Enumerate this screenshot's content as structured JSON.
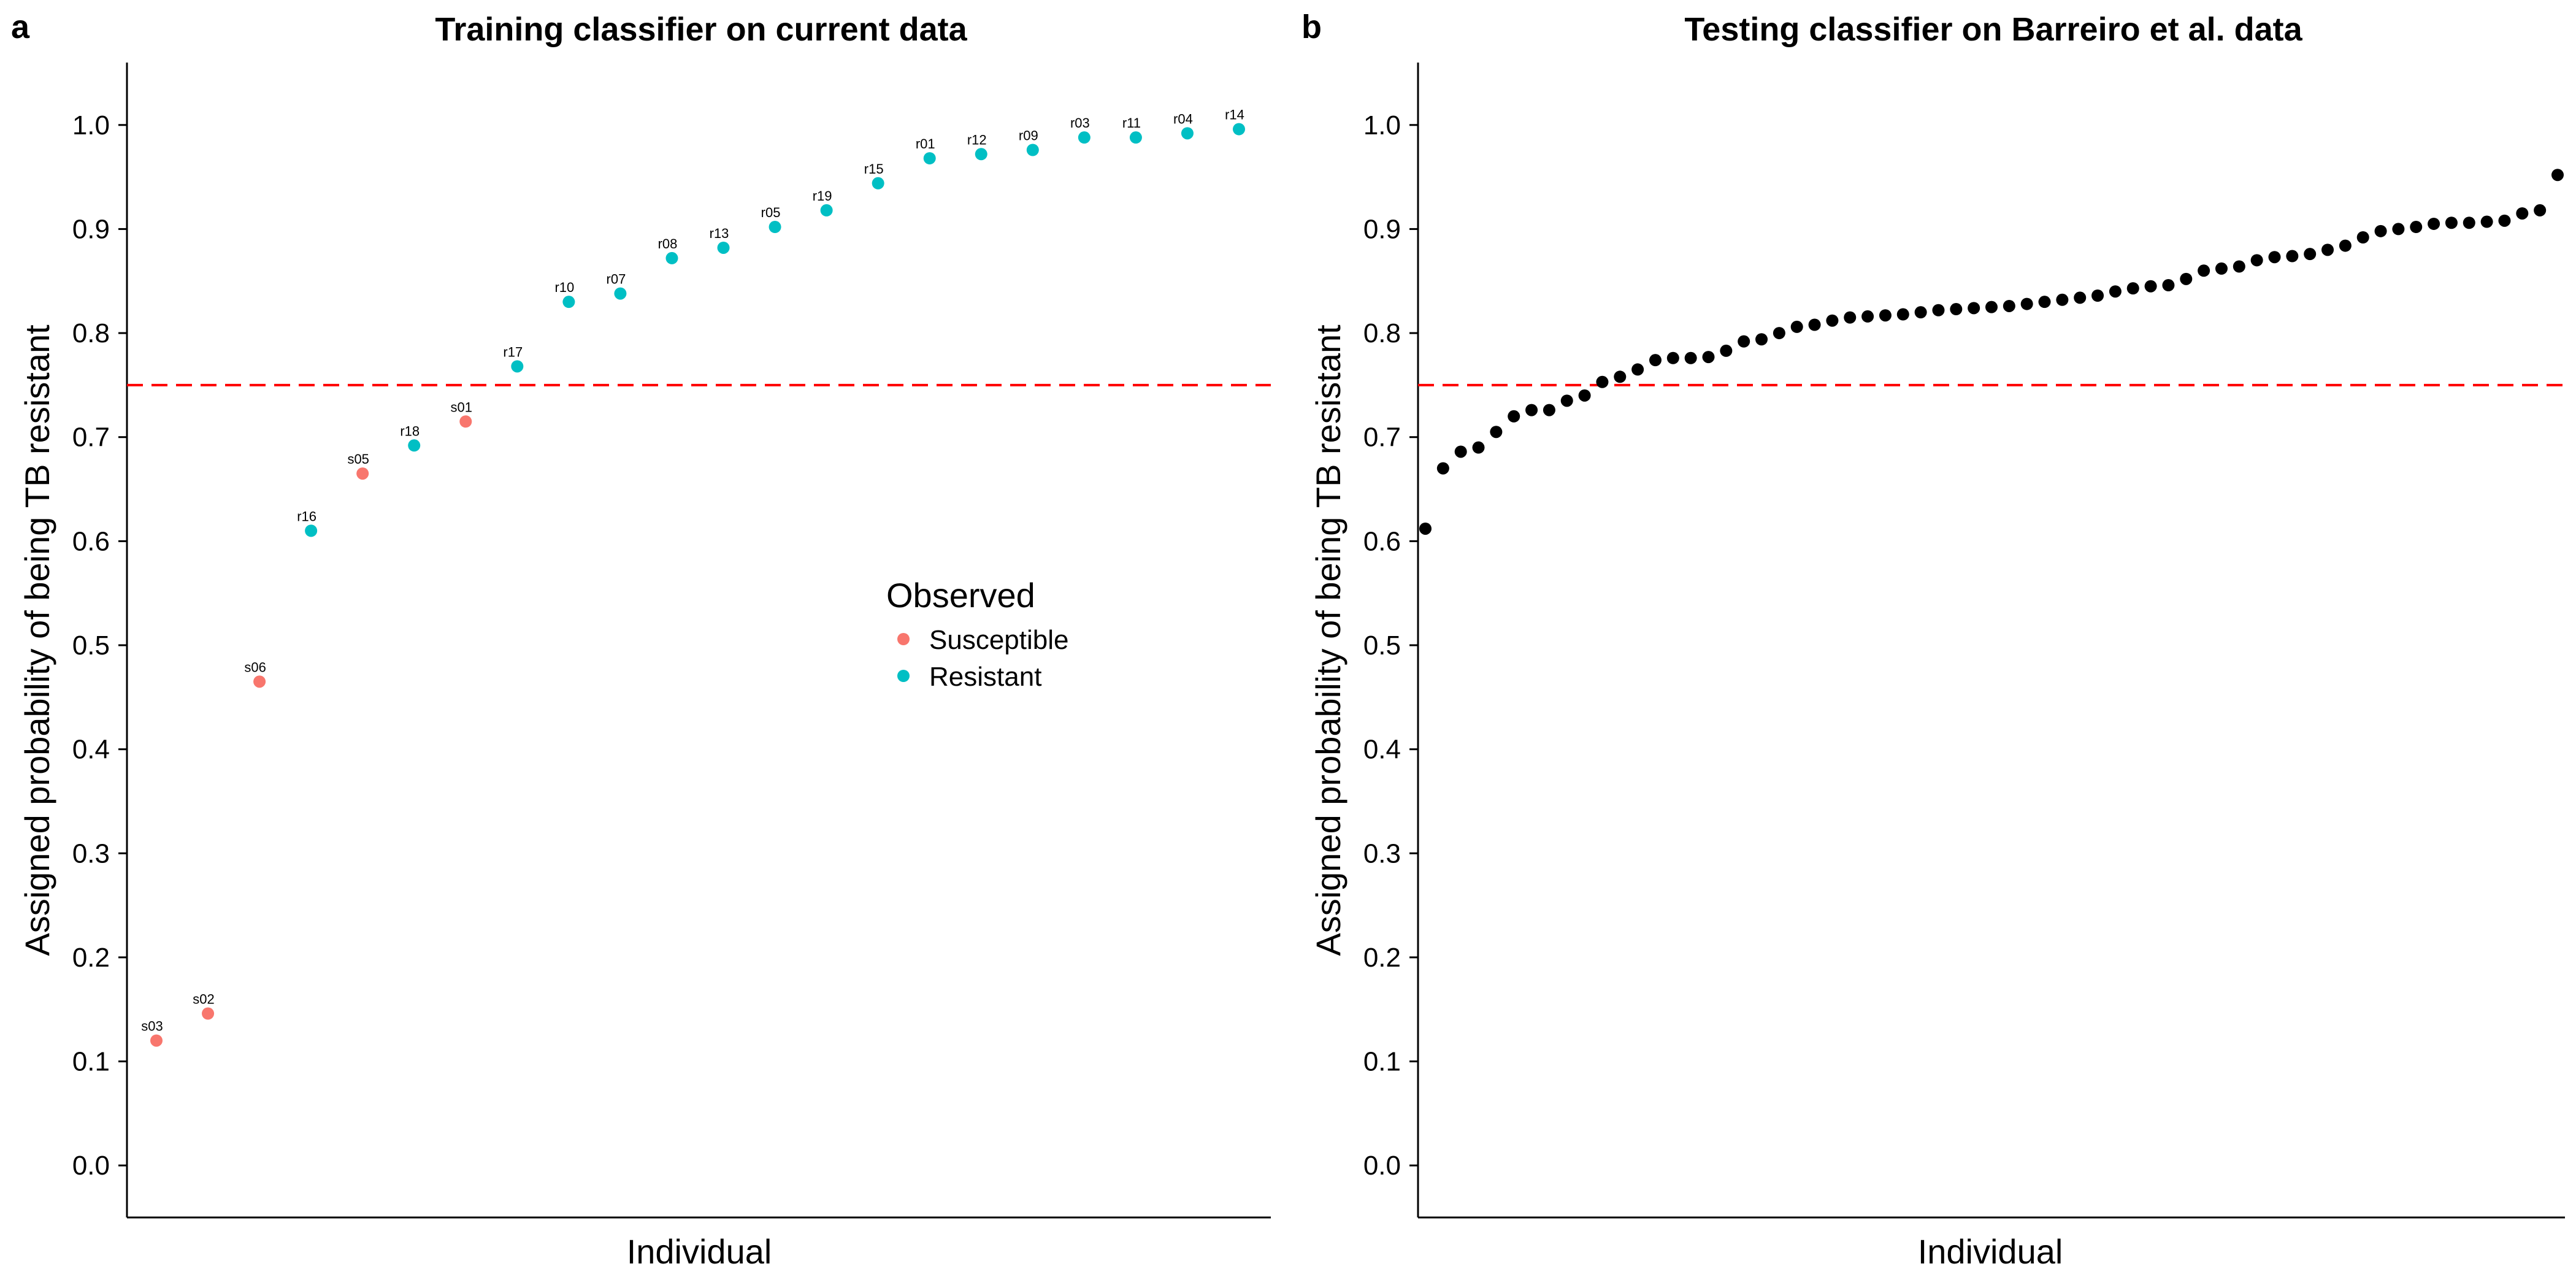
{
  "chart_data": [
    {
      "panel": "a",
      "type": "scatter",
      "title": "Training classifier on current data",
      "xlabel": "Individual",
      "ylabel": "Assigned probability of being TB resistant",
      "ylim": [
        -0.05,
        1.06
      ],
      "yticks": [
        0.0,
        0.1,
        0.2,
        0.3,
        0.4,
        0.5,
        0.6,
        0.7,
        0.8,
        0.9,
        1.0
      ],
      "ytick_labels": [
        "0.0",
        "0.1",
        "0.2",
        "0.3",
        "0.4",
        "0.5",
        "0.6",
        "0.7",
        "0.8",
        "0.9",
        "1.0"
      ],
      "threshold": 0.75,
      "threshold_color": "#ff0000",
      "grid": false,
      "legend": {
        "title": "Observed",
        "placement": "center-right",
        "entries": [
          {
            "label": "Susceptible",
            "color": "#f8766d"
          },
          {
            "label": "Resistant",
            "color": "#00bfc4"
          }
        ]
      },
      "points": [
        {
          "label": "s03",
          "y": 0.12,
          "group": "Susceptible"
        },
        {
          "label": "s02",
          "y": 0.146,
          "group": "Susceptible"
        },
        {
          "label": "s06",
          "y": 0.465,
          "group": "Susceptible"
        },
        {
          "label": "r16",
          "y": 0.61,
          "group": "Resistant"
        },
        {
          "label": "s05",
          "y": 0.665,
          "group": "Susceptible"
        },
        {
          "label": "r18",
          "y": 0.692,
          "group": "Resistant"
        },
        {
          "label": "s01",
          "y": 0.715,
          "group": "Susceptible"
        },
        {
          "label": "r17",
          "y": 0.768,
          "group": "Resistant"
        },
        {
          "label": "r10",
          "y": 0.83,
          "group": "Resistant"
        },
        {
          "label": "r07",
          "y": 0.838,
          "group": "Resistant"
        },
        {
          "label": "r08",
          "y": 0.872,
          "group": "Resistant"
        },
        {
          "label": "r13",
          "y": 0.882,
          "group": "Resistant"
        },
        {
          "label": "r05",
          "y": 0.902,
          "group": "Resistant"
        },
        {
          "label": "r19",
          "y": 0.918,
          "group": "Resistant"
        },
        {
          "label": "r15",
          "y": 0.944,
          "group": "Resistant"
        },
        {
          "label": "r01",
          "y": 0.968,
          "group": "Resistant"
        },
        {
          "label": "r12",
          "y": 0.972,
          "group": "Resistant"
        },
        {
          "label": "r09",
          "y": 0.976,
          "group": "Resistant"
        },
        {
          "label": "r03",
          "y": 0.988,
          "group": "Resistant"
        },
        {
          "label": "r11",
          "y": 0.988,
          "group": "Resistant"
        },
        {
          "label": "r04",
          "y": 0.992,
          "group": "Resistant"
        },
        {
          "label": "r14",
          "y": 0.996,
          "group": "Resistant"
        }
      ]
    },
    {
      "panel": "b",
      "type": "scatter",
      "title": "Testing classifier on Barreiro et al. data",
      "xlabel": "Individual",
      "ylabel": "Assigned probability of being TB resistant",
      "ylim": [
        -0.05,
        1.06
      ],
      "yticks": [
        0.0,
        0.1,
        0.2,
        0.3,
        0.4,
        0.5,
        0.6,
        0.7,
        0.8,
        0.9,
        1.0
      ],
      "ytick_labels": [
        "0.0",
        "0.1",
        "0.2",
        "0.3",
        "0.4",
        "0.5",
        "0.6",
        "0.7",
        "0.8",
        "0.9",
        "1.0"
      ],
      "threshold": 0.75,
      "threshold_color": "#ff0000",
      "point_color": "#000000",
      "grid": false,
      "y": [
        0.612,
        0.67,
        0.686,
        0.69,
        0.705,
        0.72,
        0.726,
        0.726,
        0.735,
        0.74,
        0.753,
        0.758,
        0.765,
        0.774,
        0.776,
        0.776,
        0.777,
        0.783,
        0.792,
        0.794,
        0.8,
        0.806,
        0.808,
        0.812,
        0.815,
        0.816,
        0.817,
        0.818,
        0.82,
        0.822,
        0.823,
        0.824,
        0.825,
        0.826,
        0.828,
        0.83,
        0.832,
        0.834,
        0.836,
        0.84,
        0.843,
        0.845,
        0.846,
        0.852,
        0.86,
        0.862,
        0.864,
        0.87,
        0.873,
        0.874,
        0.876,
        0.88,
        0.884,
        0.892,
        0.898,
        0.9,
        0.902,
        0.905,
        0.906,
        0.906,
        0.907,
        0.908,
        0.915,
        0.918,
        0.952
      ]
    }
  ]
}
